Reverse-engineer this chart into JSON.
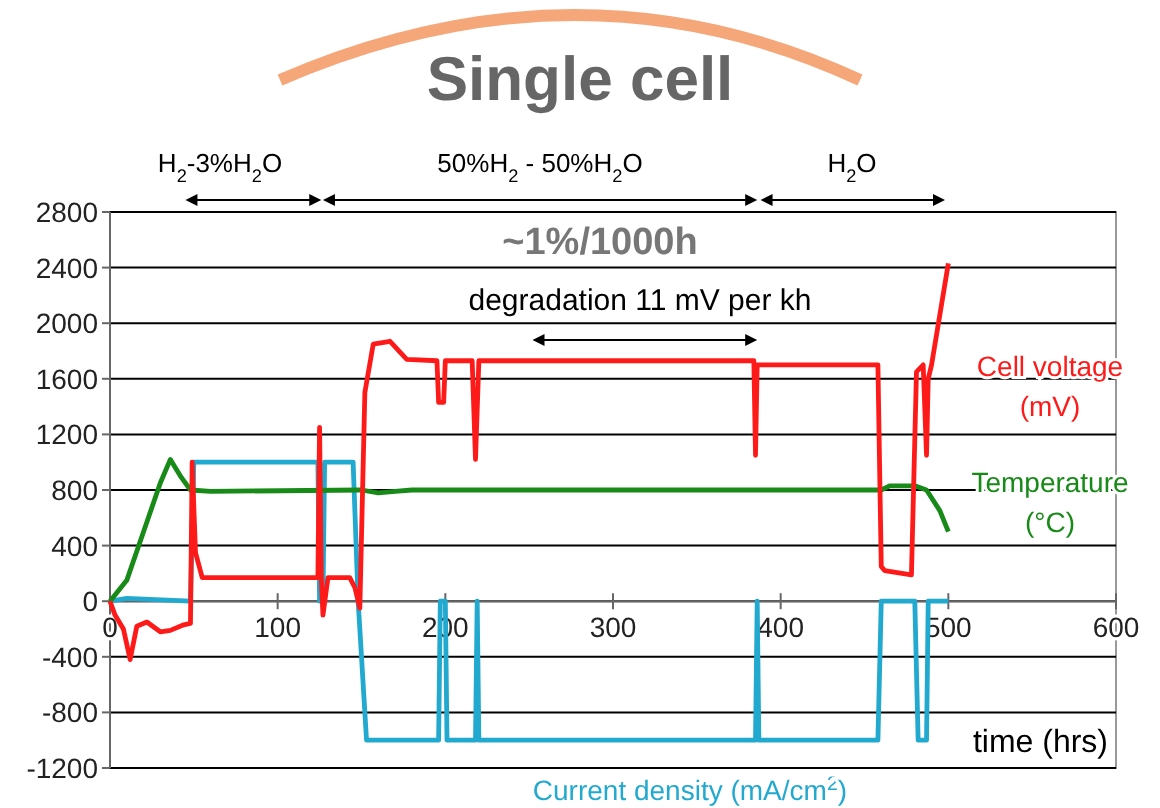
{
  "chart_data": {
    "type": "line",
    "title": "Single cell",
    "xlabel": "time (hrs)",
    "annotations": [
      "H$_{2}$-3%H$_{2}$O",
      "50%H$_{2}$ - 50%H$_{2}$O",
      "H$_{2}$O",
      "~1%/1000h",
      "degradation 11 mV per kh"
    ],
    "xlim": [
      0,
      600
    ],
    "xticks": [
      0,
      100,
      200,
      300,
      400,
      500,
      600
    ],
    "ylim": [
      -1200,
      2800
    ],
    "yticks": [
      -1200,
      -800,
      -400,
      0,
      400,
      800,
      1200,
      1600,
      2000,
      2400,
      2800
    ],
    "grid": "y",
    "line_style": "solid",
    "series": [
      {
        "name": "Current density (mA/cm$^{2}$)",
        "color": "#21a9cf",
        "x": [
          0,
          10,
          48,
          50,
          124,
          125,
          127,
          128,
          130,
          145,
          148,
          153,
          196,
          197,
          200,
          201,
          202,
          218,
          219,
          220,
          385,
          386,
          387,
          458,
          460,
          480,
          482,
          487,
          488,
          492,
          493,
          500
        ],
        "values": [
          0,
          20,
          0,
          1000,
          1000,
          0,
          0,
          1000,
          1000,
          1000,
          0,
          -1000,
          -1000,
          0,
          0,
          -1000,
          -1000,
          -1000,
          0,
          -1000,
          -1000,
          0,
          -1000,
          -1000,
          0,
          0,
          -1000,
          -1000,
          0,
          0,
          0,
          0
        ]
      },
      {
        "name": "Temperature (°C)",
        "color": "#178a17",
        "x": [
          0,
          10,
          20,
          30,
          36,
          42,
          48,
          60,
          150,
          160,
          170,
          180,
          460,
          465,
          480,
          487,
          495,
          500
        ],
        "values": [
          0,
          150,
          500,
          850,
          1020,
          900,
          800,
          790,
          800,
          780,
          790,
          800,
          800,
          830,
          830,
          800,
          650,
          500
        ]
      },
      {
        "name": "Cell voltage (mV)",
        "color": "#ff1a1a",
        "x": [
          0,
          3,
          8,
          12,
          16,
          22,
          30,
          36,
          44,
          48,
          49,
          51,
          55,
          124,
          125,
          126,
          127,
          130,
          143,
          146,
          149,
          152,
          157,
          167,
          177,
          195,
          196,
          199,
          200,
          216,
          218,
          220,
          384,
          385,
          386,
          390,
          458,
          460,
          462,
          478,
          481,
          485,
          487,
          488,
          490,
          500
        ],
        "values": [
          0,
          -100,
          -200,
          -420,
          -180,
          -150,
          -220,
          -210,
          -170,
          -160,
          1000,
          350,
          170,
          170,
          1250,
          170,
          -100,
          170,
          170,
          100,
          -50,
          1500,
          1850,
          1870,
          1740,
          1730,
          1430,
          1430,
          1730,
          1730,
          1020,
          1730,
          1730,
          1050,
          1700,
          1700,
          1700,
          250,
          220,
          190,
          1650,
          1700,
          1050,
          1600,
          1700,
          2430
        ]
      }
    ]
  }
}
